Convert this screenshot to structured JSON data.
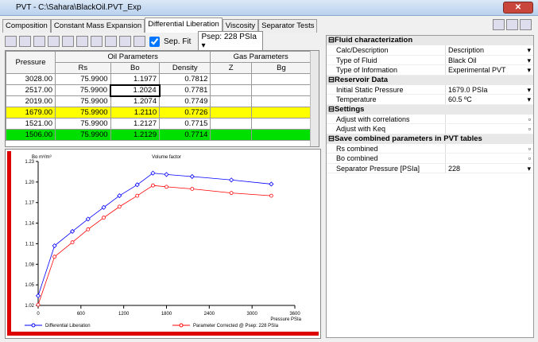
{
  "window": {
    "title": "PVT - C:\\Sahara\\BlackOil.PVT_Exp"
  },
  "tabs": [
    "Composition",
    "Constant Mass Expansion",
    "Differential Liberation",
    "Viscosity",
    "Separator Tests"
  ],
  "toolbar": {
    "sep_fit": "Sep. Fit",
    "psep": "Psep: 228 PSIa"
  },
  "table": {
    "pressure": "Pressure",
    "oil_parameters": "Oil Parameters",
    "gas_parameters": "Gas Parameters",
    "columns": [
      "Rs",
      "Bo",
      "Density",
      "Z",
      "Bg"
    ],
    "rows": [
      {
        "cells": [
          "3028.00",
          "75.9900",
          "1.1977",
          "0.7812"
        ]
      },
      {
        "cells": [
          "2517.00",
          "75.9900",
          "1.2024",
          "0.7781"
        ]
      },
      {
        "cells": [
          "2019.00",
          "75.9900",
          "1.2074",
          "0.7749"
        ]
      },
      {
        "cells": [
          "1679.00",
          "75.9900",
          "1.2110",
          "0.7726"
        ],
        "color": "#ffff00"
      },
      {
        "cells": [
          "1521.00",
          "75.9900",
          "1.2127",
          "0.7715"
        ]
      },
      {
        "cells": [
          "1506.00",
          "75.9900",
          "1.2129",
          "0.7714"
        ],
        "color": "#00e000"
      }
    ]
  },
  "chart_data": {
    "type": "line",
    "title": "Volume factor",
    "y_label": "Bo m³/m³",
    "x_label": "Pressure PSIa",
    "x": [
      0,
      230,
      480,
      700,
      920,
      1140,
      1390,
      1610,
      1800,
      2160,
      2710,
      3270
    ],
    "series": [
      {
        "name": "Differential Liberation",
        "color": "#0000ff",
        "values": [
          1.034,
          1.107,
          1.128,
          1.146,
          1.163,
          1.18,
          1.196,
          1.213,
          1.211,
          1.208,
          1.203,
          1.197
        ]
      },
      {
        "name": "Parameter Corrected @ Psep: 228 PSIa",
        "color": "#ff0000",
        "values": [
          1.021,
          1.091,
          1.112,
          1.131,
          1.148,
          1.164,
          1.18,
          1.195,
          1.193,
          1.19,
          1.184,
          1.18
        ]
      }
    ],
    "xlim": [
      0,
      3600
    ],
    "xticks": [
      0,
      600,
      1200,
      1800,
      2400,
      3000,
      3600
    ],
    "ylim": [
      1.02,
      1.23
    ],
    "yticks": [
      1.02,
      1.05,
      1.08,
      1.11,
      1.14,
      1.17,
      {
        "value": 1.2,
        "label": "1.20"
      },
      1.23
    ]
  },
  "properties": [
    {
      "title": "Fluid characterization",
      "rows": [
        {
          "label": "Calc/Description",
          "value": "Description"
        },
        {
          "label": "Type of Fluid",
          "value": "Black Oil"
        },
        {
          "label": "Type of Information",
          "value": "Experimental PVT"
        }
      ]
    },
    {
      "title": "Reservoir Data",
      "rows": [
        {
          "label": "Initial Static Pressure",
          "value": "1679.0 PSIa"
        },
        {
          "label": "Temperature",
          "value": "60.5 ºC"
        }
      ]
    },
    {
      "title": "Settings",
      "rows": [
        {
          "label": "Adjust with correlations"
        },
        {
          "label": "Adjust with Keq"
        }
      ]
    },
    {
      "title": "Save combined parameters in PVT tables",
      "rows": [
        {
          "label": "Rs combined"
        },
        {
          "label": "Bo combined"
        },
        {
          "label": "Separator Pressure [PSIa]",
          "value": "228"
        }
      ]
    }
  ]
}
